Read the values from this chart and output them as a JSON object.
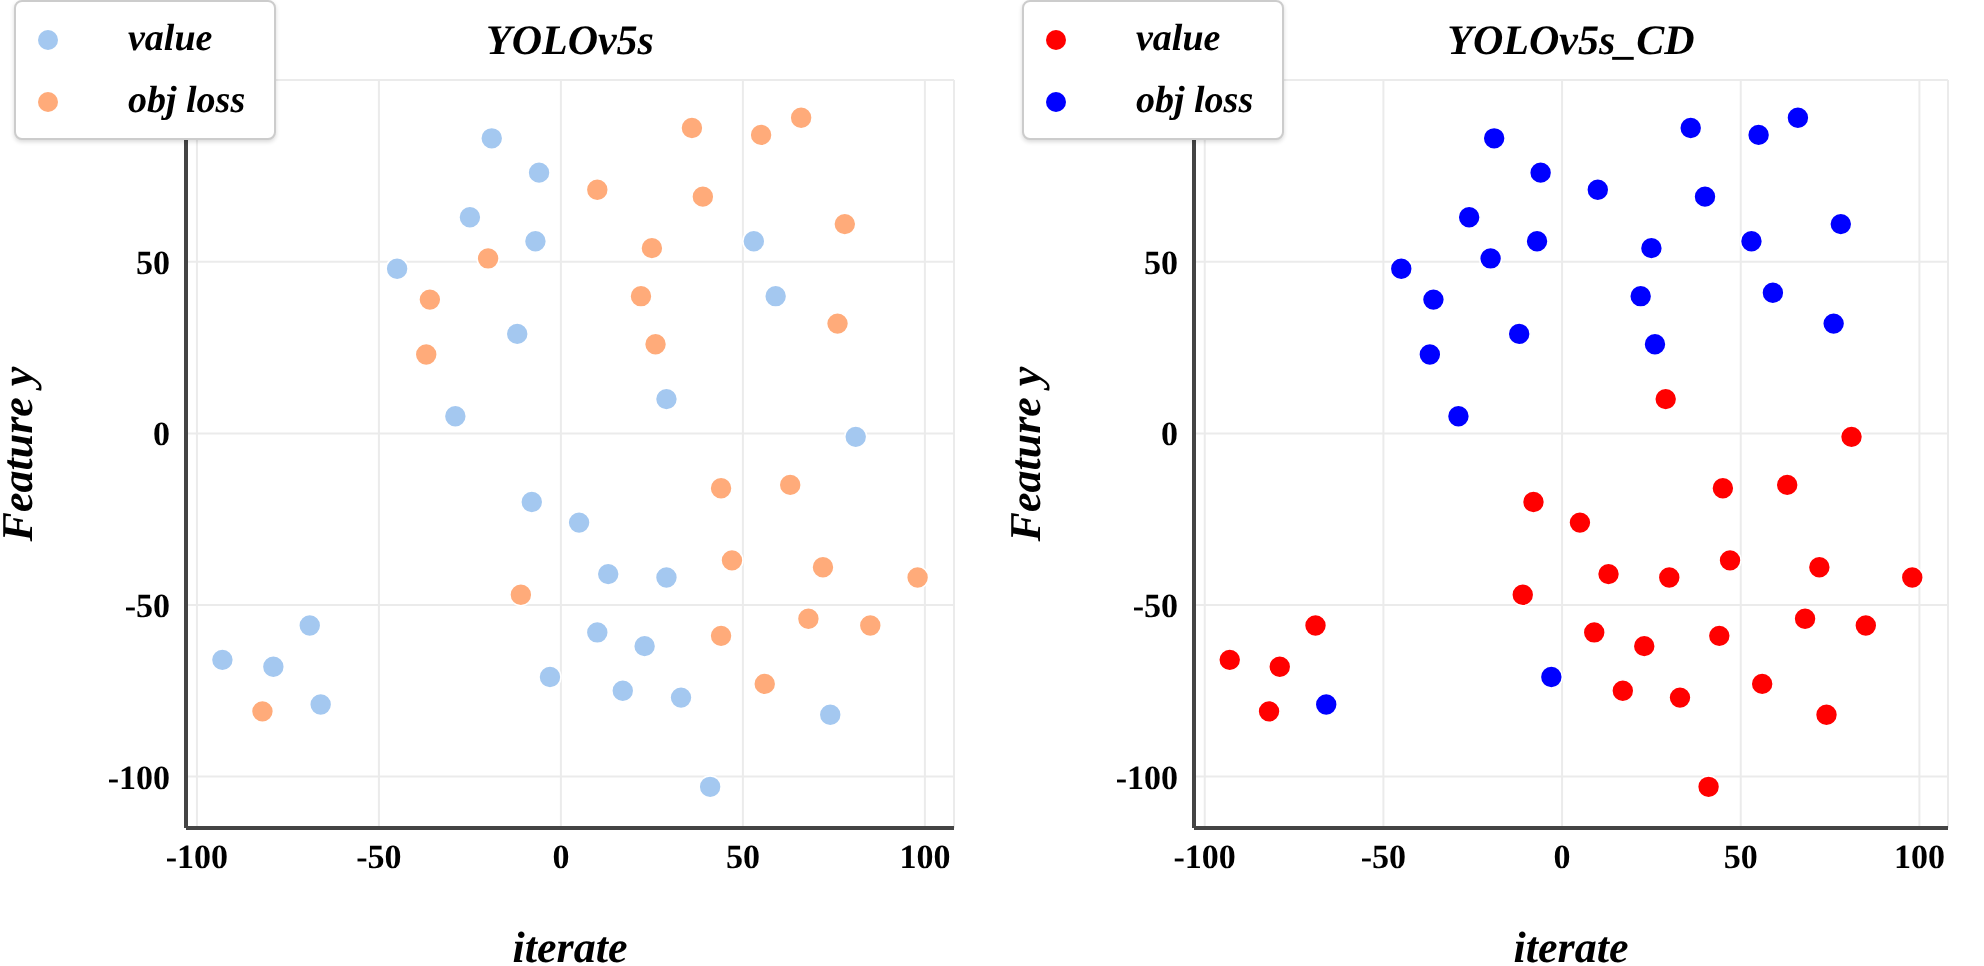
{
  "chart_data": [
    {
      "type": "scatter",
      "title": "YOLOv5s",
      "xlabel": "iterate",
      "ylabel": "Feature y",
      "xlim": [
        -103,
        108
      ],
      "ylim": [
        -115,
        103
      ],
      "xticks": [
        -100,
        -50,
        0,
        50,
        100
      ],
      "yticks": [
        -100,
        -50,
        0,
        50
      ],
      "grid": true,
      "legend": "top left",
      "marker": "circle",
      "series": [
        {
          "name": "value",
          "color": "#a4c8f0",
          "x": [
            -19,
            -6,
            -25,
            -7,
            -45,
            53,
            59,
            -12,
            -29,
            29,
            81,
            -8,
            5,
            13,
            29,
            -69,
            -93,
            -79,
            -66,
            10,
            23,
            -3,
            17,
            33,
            74,
            41
          ],
          "values": [
            86,
            76,
            63,
            56,
            48,
            56,
            40,
            29,
            5,
            10,
            -1,
            -20,
            -26,
            -41,
            -42,
            -56,
            -66,
            -68,
            -79,
            -58,
            -62,
            -71,
            -75,
            -77,
            -82,
            -103
          ]
        },
        {
          "name": "obj loss",
          "color": "#ffab7a",
          "x": [
            36,
            55,
            66,
            10,
            39,
            78,
            25,
            -20,
            -36,
            22,
            76,
            26,
            -37,
            44,
            63,
            47,
            72,
            98,
            -11,
            68,
            85,
            44,
            56,
            -82
          ],
          "values": [
            89,
            87,
            92,
            71,
            69,
            61,
            54,
            51,
            39,
            40,
            32,
            26,
            23,
            -16,
            -15,
            -37,
            -39,
            -42,
            -47,
            -54,
            -56,
            -59,
            -73,
            -81
          ]
        }
      ]
    },
    {
      "type": "scatter",
      "title": "YOLOv5s_CD",
      "xlabel": "iterate",
      "ylabel": "Feature y",
      "xlim": [
        -103,
        108
      ],
      "ylim": [
        -115,
        103
      ],
      "xticks": [
        -100,
        -50,
        0,
        50,
        100
      ],
      "yticks": [
        -100,
        -50,
        0,
        50
      ],
      "grid": true,
      "legend": "top left",
      "marker": "circle",
      "series": [
        {
          "name": "value",
          "color": "#ff0000",
          "x": [
            29,
            81,
            -8,
            5,
            45,
            63,
            13,
            30,
            47,
            72,
            98,
            -11,
            -69,
            -93,
            -79,
            -82,
            9,
            23,
            44,
            68,
            85,
            17,
            33,
            56,
            74,
            41
          ],
          "values": [
            10,
            -1,
            -20,
            -26,
            -16,
            -15,
            -41,
            -42,
            -37,
            -39,
            -42,
            -47,
            -56,
            -66,
            -68,
            -81,
            -58,
            -62,
            -59,
            -54,
            -56,
            -75,
            -77,
            -73,
            -82,
            -103
          ]
        },
        {
          "name": "obj loss",
          "color": "#0000ff",
          "x": [
            -19,
            -6,
            -26,
            -7,
            -45,
            10,
            36,
            55,
            66,
            40,
            78,
            25,
            53,
            -20,
            -36,
            22,
            59,
            76,
            -12,
            -37,
            26,
            -29,
            -66,
            -3
          ],
          "values": [
            86,
            76,
            63,
            56,
            48,
            71,
            89,
            87,
            92,
            69,
            61,
            54,
            56,
            51,
            39,
            40,
            41,
            32,
            29,
            23,
            26,
            5,
            -79,
            -71
          ]
        }
      ]
    }
  ]
}
